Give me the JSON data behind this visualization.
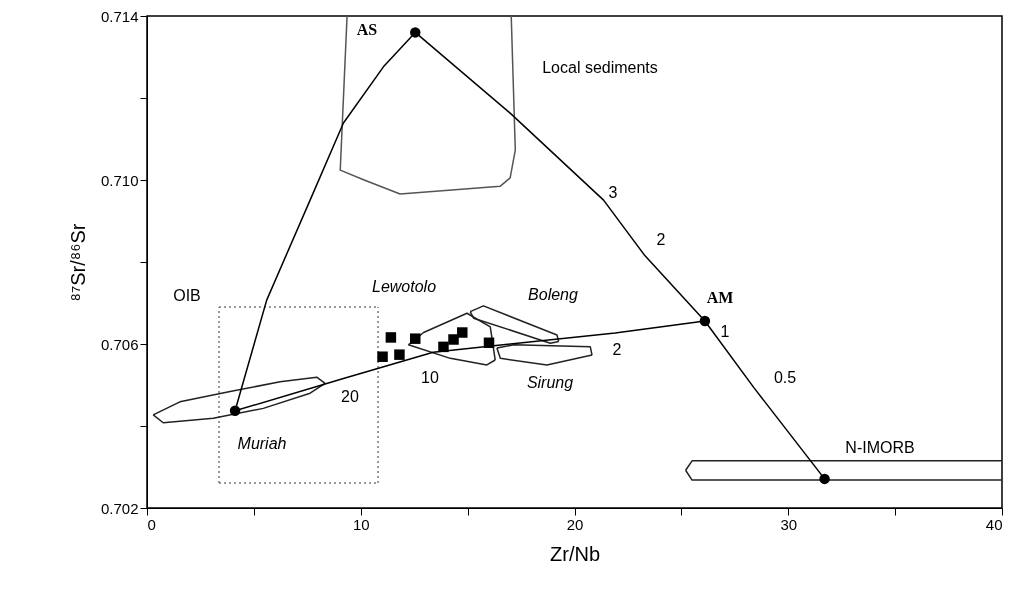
{
  "chart_data": {
    "type": "scatter",
    "xlabel": "Zr/Nb",
    "ylabel": "⁸⁷Sr/⁸⁶Sr",
    "xlim": [
      0,
      40
    ],
    "xticks": [
      0,
      {
        "value": 5,
        "label": null
      },
      10,
      {
        "value": 15,
        "label": null
      },
      20,
      {
        "value": 25,
        "label": null
      },
      30,
      {
        "value": 35,
        "label": null
      },
      40
    ],
    "ylim": [
      0.702,
      0.714
    ],
    "yticks": [
      0.702,
      {
        "value": 0.704,
        "label": null
      },
      {
        "value": 0.706,
        "label": "0.706"
      },
      {
        "value": 0.708,
        "label": null
      },
      {
        "value": 0.71,
        "label": "0.710"
      },
      {
        "value": 0.712,
        "label": null
      },
      0.714
    ],
    "grid": false,
    "series": [
      {
        "type": "line",
        "color": "#555555",
        "x": [
          9.36,
          9.04,
          10.16,
          11.84,
          16.53,
          16.99,
          17.23,
          17.04
        ],
        "values": [
          0.714,
          0.71024,
          0.71,
          0.70966,
          0.70985,
          0.71005,
          0.71073,
          0.714
        ]
      },
      {
        "type": "line",
        "color": "#777777",
        "line_style": "dotted",
        "x": [
          3.37,
          10.81
        ],
        "values": [
          0.7069,
          0.7069
        ]
      },
      {
        "type": "line",
        "color": "#777777",
        "line_style": "dotted",
        "x": [
          3.37,
          10.81
        ],
        "values": [
          0.70261,
          0.70261
        ]
      },
      {
        "type": "line",
        "color": "#777777",
        "line_style": "dotted",
        "x": [
          3.37,
          3.37
        ],
        "values": [
          0.70261,
          0.7069
        ]
      },
      {
        "type": "line",
        "color": "#777777",
        "line_style": "dotted",
        "x": [
          10.81,
          10.81
        ],
        "values": [
          0.70261,
          0.7069
        ]
      },
      {
        "type": "line",
        "color": "#222222",
        "x": [
          0.29,
          1.54,
          3.89,
          6.23,
          7.94,
          8.33
        ],
        "values": [
          0.70427,
          0.70459,
          0.70484,
          0.70508,
          0.70519,
          0.70504
        ]
      },
      {
        "type": "line",
        "color": "#222222",
        "x": [
          0.29,
          0.76,
          3.1,
          5.44,
          7.63,
          8.33
        ],
        "values": [
          0.70427,
          0.70408,
          0.70419,
          0.70443,
          0.7048,
          0.70504
        ]
      },
      {
        "type": "line",
        "color": "#222222",
        "x": [
          12.23,
          12.94,
          14.97,
          16.06,
          16.29
        ],
        "values": [
          0.70598,
          0.70628,
          0.70675,
          0.70642,
          0.70561
        ]
      },
      {
        "type": "line",
        "color": "#222222",
        "x": [
          12.23,
          14.19,
          15.9,
          16.29
        ],
        "values": [
          0.70598,
          0.70565,
          0.70549,
          0.70561
        ]
      },
      {
        "type": "line",
        "color": "#222222",
        "x": [
          15.12,
          15.74,
          19.18,
          19.26
        ],
        "values": [
          0.70679,
          0.70693,
          0.70622,
          0.70606
        ]
      },
      {
        "type": "line",
        "color": "#222222",
        "x": [
          15.12,
          15.28,
          18.87,
          19.26
        ],
        "values": [
          0.70679,
          0.70663,
          0.70602,
          0.70606
        ]
      },
      {
        "type": "line",
        "color": "#222222",
        "x": [
          16.37,
          17.15,
          20.74,
          20.82
        ],
        "values": [
          0.7059,
          0.70598,
          0.70593,
          0.70573
        ]
      },
      {
        "type": "line",
        "color": "#222222",
        "x": [
          16.37,
          16.53,
          18.71,
          20.82
        ],
        "values": [
          0.7059,
          0.70565,
          0.70549,
          0.70573
        ]
      },
      {
        "type": "line",
        "color": "#222222",
        "x": [
          25.2,
          25.5,
          40
        ],
        "values": [
          0.70292,
          0.70315,
          0.70315
        ]
      },
      {
        "type": "line",
        "color": "#222222",
        "x": [
          25.2,
          25.5,
          40
        ],
        "values": [
          0.70292,
          0.70268,
          0.70268
        ]
      },
      {
        "type": "line",
        "color": "#000000",
        "x": [
          4.12,
          5.6,
          7.63,
          9.19,
          11.06,
          12.55
        ],
        "values": [
          0.70437,
          0.70707,
          0.70951,
          0.71139,
          0.71276,
          0.7136
        ]
      },
      {
        "type": "line",
        "color": "#000000",
        "x": [
          12.55,
          16.99,
          21.36,
          23.3,
          26.1,
          28.4,
          31.7
        ],
        "values": [
          0.7136,
          0.71163,
          0.70951,
          0.70815,
          0.70656,
          0.70493,
          0.70271
        ]
      },
      {
        "type": "line",
        "color": "#000000",
        "x": [
          4.12,
          9.27,
          13.39,
          21.9,
          26.1
        ],
        "values": [
          0.70437,
          0.70517,
          0.7058,
          0.70627,
          0.70656
        ]
      },
      {
        "marker": "circle",
        "color": "#000000",
        "x": [
          12.55,
          26.1,
          31.7,
          4.12
        ],
        "values": [
          0.7136,
          0.70656,
          0.70271,
          0.70437
        ]
      },
      {
        "marker": "square",
        "color": "#000000",
        "x": [
          11.41,
          12.55,
          11.02,
          11.81,
          13.87,
          14.34,
          14.75,
          16.0
        ],
        "values": [
          0.70616,
          0.70613,
          0.70569,
          0.70574,
          0.70593,
          0.70611,
          0.70628,
          0.70603
        ]
      }
    ],
    "annotations": [
      "AS",
      "Local sediments",
      "OIB",
      "Lewotolo",
      "Boleng",
      "Sirung",
      "Muriah",
      "N-IMORB",
      "AM",
      "3",
      "2",
      "1",
      "0.5",
      "20",
      "10",
      "2"
    ]
  }
}
